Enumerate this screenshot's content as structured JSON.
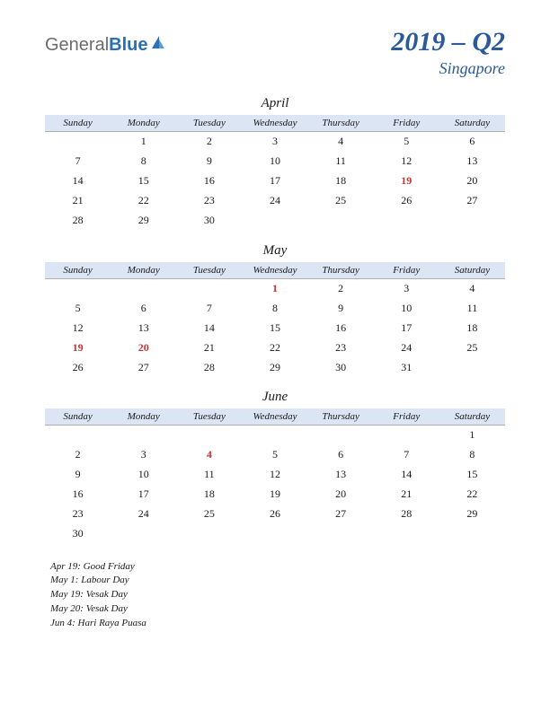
{
  "logo": {
    "general": "General",
    "blue": "Blue"
  },
  "title": {
    "quarter": "2019 – Q2",
    "country": "Singapore"
  },
  "colors": {
    "header_bg": "#dbe5f4",
    "title_color": "#2a5a9a",
    "holiday_color": "#c83232",
    "text_color": "#1a1a1a",
    "logo_gray": "#6b6b6b",
    "logo_blue": "#2a6fb5"
  },
  "day_headers": [
    "Sunday",
    "Monday",
    "Tuesday",
    "Wednesday",
    "Thursday",
    "Friday",
    "Saturday"
  ],
  "months": [
    {
      "name": "April",
      "weeks": [
        [
          "",
          "1",
          "2",
          "3",
          "4",
          "5",
          "6"
        ],
        [
          "7",
          "8",
          "9",
          "10",
          "11",
          "12",
          "13"
        ],
        [
          "14",
          "15",
          "16",
          "17",
          "18",
          "19",
          "20"
        ],
        [
          "21",
          "22",
          "23",
          "24",
          "25",
          "26",
          "27"
        ],
        [
          "28",
          "29",
          "30",
          "",
          "",
          "",
          ""
        ]
      ],
      "holidays": [
        "19"
      ]
    },
    {
      "name": "May",
      "weeks": [
        [
          "",
          "",
          "",
          "1",
          "2",
          "3",
          "4"
        ],
        [
          "5",
          "6",
          "7",
          "8",
          "9",
          "10",
          "11"
        ],
        [
          "12",
          "13",
          "14",
          "15",
          "16",
          "17",
          "18"
        ],
        [
          "19",
          "20",
          "21",
          "22",
          "23",
          "24",
          "25"
        ],
        [
          "26",
          "27",
          "28",
          "29",
          "30",
          "31",
          ""
        ]
      ],
      "holidays": [
        "1",
        "19",
        "20"
      ]
    },
    {
      "name": "June",
      "weeks": [
        [
          "",
          "",
          "",
          "",
          "",
          "",
          "1"
        ],
        [
          "2",
          "3",
          "4",
          "5",
          "6",
          "7",
          "8"
        ],
        [
          "9",
          "10",
          "11",
          "12",
          "13",
          "14",
          "15"
        ],
        [
          "16",
          "17",
          "18",
          "19",
          "20",
          "21",
          "22"
        ],
        [
          "23",
          "24",
          "25",
          "26",
          "27",
          "28",
          "29"
        ],
        [
          "30",
          "",
          "",
          "",
          "",
          "",
          ""
        ]
      ],
      "holidays": [
        "4"
      ]
    }
  ],
  "holiday_list": [
    "Apr 19: Good Friday",
    "May 1: Labour Day",
    "May 19: Vesak Day",
    "May 20: Vesak Day",
    "Jun 4: Hari Raya Puasa"
  ]
}
